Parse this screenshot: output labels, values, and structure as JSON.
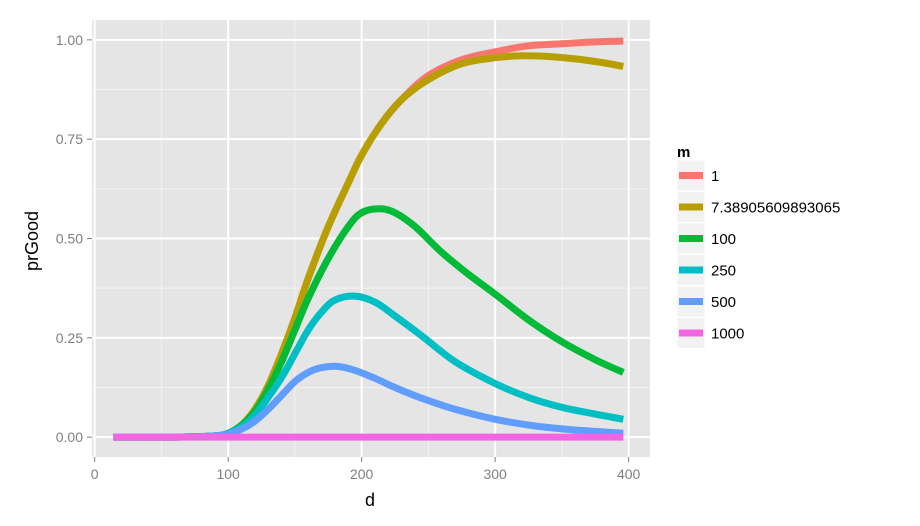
{
  "chart_data": {
    "type": "line",
    "xlabel": "d",
    "ylabel": "prGood",
    "xlim": [
      -2,
      416
    ],
    "ylim": [
      -0.05,
      1.05
    ],
    "x_ticks": [
      0,
      100,
      200,
      300,
      400
    ],
    "x_tick_labels": [
      "0",
      "100",
      "200",
      "300",
      "400"
    ],
    "y_ticks": [
      0,
      0.25,
      0.5,
      0.75,
      1.0
    ],
    "y_tick_labels": [
      "0.00",
      "0.25",
      "0.50",
      "0.75",
      "1.00"
    ],
    "grid": true,
    "legend": {
      "title": "m",
      "position": "right"
    },
    "series": [
      {
        "name": "1",
        "color": "#F8766D",
        "x": [
          14,
          60,
          90,
          100,
          110,
          120,
          130,
          140,
          150,
          160,
          175,
          190,
          200,
          215,
          230,
          250,
          275,
          300,
          325,
          350,
          375,
          396
        ],
        "y": [
          0,
          0,
          0.003,
          0.01,
          0.03,
          0.07,
          0.13,
          0.21,
          0.3,
          0.4,
          0.53,
          0.64,
          0.71,
          0.79,
          0.85,
          0.91,
          0.95,
          0.97,
          0.985,
          0.99,
          0.995,
          0.997
        ]
      },
      {
        "name": "7.38905609893065",
        "color": "#B79F00",
        "x": [
          14,
          60,
          90,
          100,
          110,
          120,
          130,
          140,
          150,
          160,
          175,
          190,
          200,
          215,
          230,
          250,
          275,
          300,
          320,
          340,
          360,
          380,
          396
        ],
        "y": [
          0,
          0,
          0.003,
          0.01,
          0.03,
          0.07,
          0.13,
          0.21,
          0.3,
          0.4,
          0.53,
          0.64,
          0.71,
          0.79,
          0.85,
          0.9,
          0.94,
          0.955,
          0.96,
          0.958,
          0.952,
          0.943,
          0.933
        ]
      },
      {
        "name": "100",
        "color": "#00BA38",
        "x": [
          14,
          60,
          90,
          100,
          110,
          120,
          130,
          140,
          150,
          160,
          175,
          190,
          200,
          213,
          225,
          240,
          260,
          280,
          300,
          325,
          350,
          375,
          396
        ],
        "y": [
          0,
          0,
          0.003,
          0.01,
          0.03,
          0.065,
          0.12,
          0.19,
          0.27,
          0.35,
          0.45,
          0.53,
          0.565,
          0.575,
          0.565,
          0.53,
          0.465,
          0.41,
          0.36,
          0.295,
          0.24,
          0.195,
          0.163
        ]
      },
      {
        "name": "250",
        "color": "#00BFC4",
        "x": [
          14,
          60,
          90,
          100,
          110,
          120,
          130,
          140,
          150,
          160,
          170,
          180,
          195,
          210,
          225,
          245,
          270,
          300,
          325,
          350,
          375,
          396
        ],
        "y": [
          0,
          0,
          0.003,
          0.01,
          0.025,
          0.055,
          0.1,
          0.15,
          0.21,
          0.27,
          0.315,
          0.345,
          0.355,
          0.34,
          0.305,
          0.255,
          0.19,
          0.135,
          0.1,
          0.075,
          0.058,
          0.045
        ]
      },
      {
        "name": "500",
        "color": "#619CFF",
        "x": [
          14,
          60,
          90,
          100,
          110,
          120,
          130,
          140,
          150,
          160,
          170,
          182,
          195,
          210,
          225,
          245,
          270,
          300,
          330,
          360,
          396
        ],
        "y": [
          0,
          0,
          0.003,
          0.008,
          0.02,
          0.04,
          0.07,
          0.105,
          0.14,
          0.163,
          0.175,
          0.178,
          0.168,
          0.148,
          0.125,
          0.098,
          0.07,
          0.045,
          0.028,
          0.018,
          0.01
        ]
      },
      {
        "name": "1000",
        "color": "#F564E3",
        "x": [
          14,
          396
        ],
        "y": [
          0,
          0
        ]
      }
    ]
  }
}
